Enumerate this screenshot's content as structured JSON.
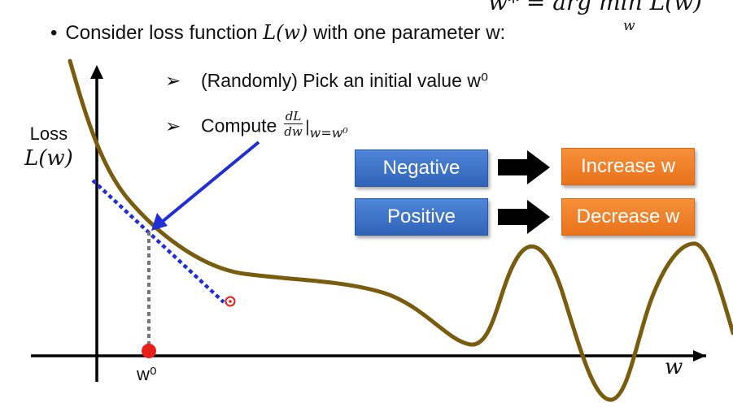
{
  "slide": {
    "top_formula": {
      "main": "w* = arg min L(w)",
      "subscript": "w"
    },
    "bullet": {
      "dot": "•",
      "text_before": "Consider loss function ",
      "func": "L(w)",
      "text_after": " with one parameter w:"
    },
    "steps": [
      {
        "marker": "➢",
        "text": "(Randomly) Pick an initial value w⁰"
      },
      {
        "marker": "➢",
        "text": "Compute",
        "frac_num": "dL",
        "frac_den": "dw",
        "eval": "|",
        "eval_sub": "w=w⁰"
      }
    ],
    "axis": {
      "y_label_line1": "Loss",
      "y_label_line2": "L(w)",
      "x_label": "w",
      "point_label": "w⁰"
    },
    "boxes": {
      "negative": "Negative",
      "positive": "Positive",
      "increase": "Increase w",
      "decrease": "Decrease w"
    },
    "colors": {
      "curve": "#7a5c0f",
      "tangent": "#1f2ed6",
      "pointer_arrow": "#1f2ed6",
      "point": "#e8201a",
      "box_blue": "#3b6fc6",
      "box_orange": "#f08229"
    }
  }
}
